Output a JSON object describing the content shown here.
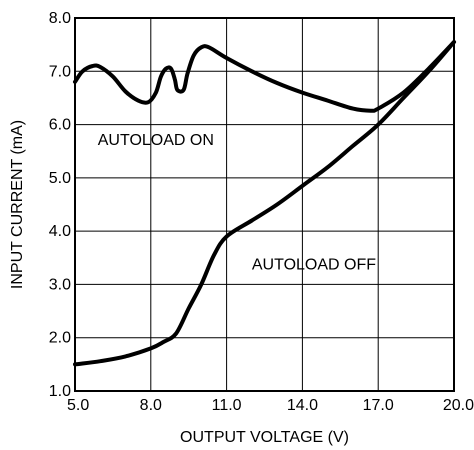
{
  "chart_data": {
    "type": "line",
    "title": "",
    "xlabel": "OUTPUT VOLTAGE (V)",
    "ylabel": "INPUT CURRENT (mA)",
    "xlim": [
      5.0,
      20.0
    ],
    "ylim": [
      1.0,
      8.0
    ],
    "x_ticks": [
      "5.0",
      "8.0",
      "11.0",
      "14.0",
      "17.0",
      "20.0"
    ],
    "y_ticks": [
      "1.0",
      "2.0",
      "3.0",
      "4.0",
      "5.0",
      "6.0",
      "7.0",
      "8.0"
    ],
    "grid": true,
    "legend": "none",
    "series": [
      {
        "label": "AUTOLOAD ON",
        "color": "#000000",
        "points": [
          [
            5.0,
            6.8
          ],
          [
            5.3,
            7.0
          ],
          [
            5.7,
            7.1
          ],
          [
            6.0,
            7.08
          ],
          [
            6.5,
            6.9
          ],
          [
            7.0,
            6.62
          ],
          [
            7.5,
            6.45
          ],
          [
            7.9,
            6.42
          ],
          [
            8.2,
            6.6
          ],
          [
            8.4,
            6.9
          ],
          [
            8.6,
            7.05
          ],
          [
            8.8,
            7.05
          ],
          [
            8.95,
            6.85
          ],
          [
            9.05,
            6.65
          ],
          [
            9.3,
            6.65
          ],
          [
            9.45,
            6.95
          ],
          [
            9.7,
            7.3
          ],
          [
            10.0,
            7.45
          ],
          [
            10.3,
            7.45
          ],
          [
            11.0,
            7.25
          ],
          [
            12.0,
            7.0
          ],
          [
            13.0,
            6.78
          ],
          [
            14.0,
            6.6
          ],
          [
            15.0,
            6.45
          ],
          [
            16.0,
            6.3
          ],
          [
            16.7,
            6.26
          ],
          [
            17.0,
            6.3
          ],
          [
            18.0,
            6.6
          ],
          [
            19.0,
            7.05
          ],
          [
            20.0,
            7.55
          ]
        ]
      },
      {
        "label": "AUTOLOAD OFF",
        "color": "#000000",
        "points": [
          [
            5.0,
            1.5
          ],
          [
            6.0,
            1.56
          ],
          [
            7.0,
            1.65
          ],
          [
            8.0,
            1.8
          ],
          [
            8.5,
            1.92
          ],
          [
            9.0,
            2.08
          ],
          [
            9.5,
            2.55
          ],
          [
            10.0,
            3.0
          ],
          [
            10.5,
            3.55
          ],
          [
            11.0,
            3.9
          ],
          [
            12.0,
            4.2
          ],
          [
            13.0,
            4.5
          ],
          [
            14.0,
            4.85
          ],
          [
            15.0,
            5.2
          ],
          [
            16.0,
            5.6
          ],
          [
            17.0,
            6.0
          ],
          [
            18.0,
            6.5
          ],
          [
            19.0,
            7.0
          ],
          [
            20.0,
            7.55
          ]
        ]
      }
    ],
    "annotations": [
      {
        "text": "AUTOLOAD ON",
        "x": 5.9,
        "y": 5.62
      },
      {
        "text": "AUTOLOAD OFF",
        "x": 12.0,
        "y": 3.28
      }
    ]
  }
}
